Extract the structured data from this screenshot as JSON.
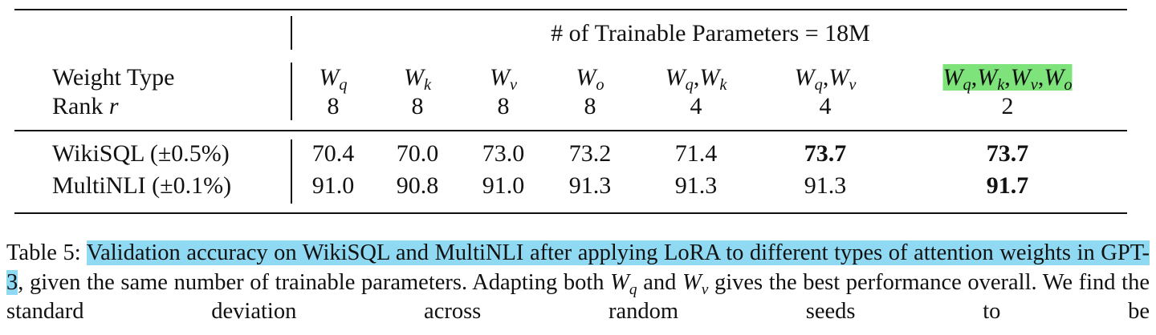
{
  "table": {
    "group_header": "# of Trainable Parameters = 18M",
    "weight_type_label": "Weight Type",
    "rank_label": {
      "text": "Rank",
      "var": "r"
    },
    "separator": ",",
    "weight_types": [
      [
        {
          "base": "W",
          "sub": "q"
        }
      ],
      [
        {
          "base": "W",
          "sub": "k"
        }
      ],
      [
        {
          "base": "W",
          "sub": "v"
        }
      ],
      [
        {
          "base": "W",
          "sub": "o"
        }
      ],
      [
        {
          "base": "W",
          "sub": "q"
        },
        {
          "base": "W",
          "sub": "k"
        }
      ],
      [
        {
          "base": "W",
          "sub": "q"
        },
        {
          "base": "W",
          "sub": "v"
        }
      ],
      [
        {
          "base": "W",
          "sub": "q"
        },
        {
          "base": "W",
          "sub": "k"
        },
        {
          "base": "W",
          "sub": "v"
        },
        {
          "base": "W",
          "sub": "o"
        }
      ]
    ],
    "highlighted_column": 6,
    "ranks": [
      "8",
      "8",
      "8",
      "8",
      "4",
      "4",
      "2"
    ],
    "rows": [
      {
        "label": "WikiSQL (±0.5%)",
        "values": [
          "70.4",
          "70.0",
          "73.0",
          "73.2",
          "71.4",
          "73.7",
          "73.7"
        ],
        "bold": [
          5,
          6
        ]
      },
      {
        "label": "MultiNLI (±0.1%)",
        "values": [
          "91.0",
          "90.8",
          "91.0",
          "91.3",
          "91.3",
          "91.3",
          "91.7"
        ],
        "bold": [
          6
        ]
      }
    ]
  },
  "caption": {
    "parts": [
      {
        "text": "Table 5: "
      },
      {
        "highlight": "Validation accuracy on WikiSQL and MultiNLI after applying LoRA to different types of attention weights in GPT-3"
      },
      {
        "text": ", given the same number of trainable parameters. Adapting both "
      },
      {
        "base": "W",
        "sub": "q"
      },
      {
        "text": " and "
      },
      {
        "base": "W",
        "sub": "v"
      },
      {
        "text": " gives the best performance overall. We find the standard deviation across random seeds to be"
      }
    ]
  }
}
